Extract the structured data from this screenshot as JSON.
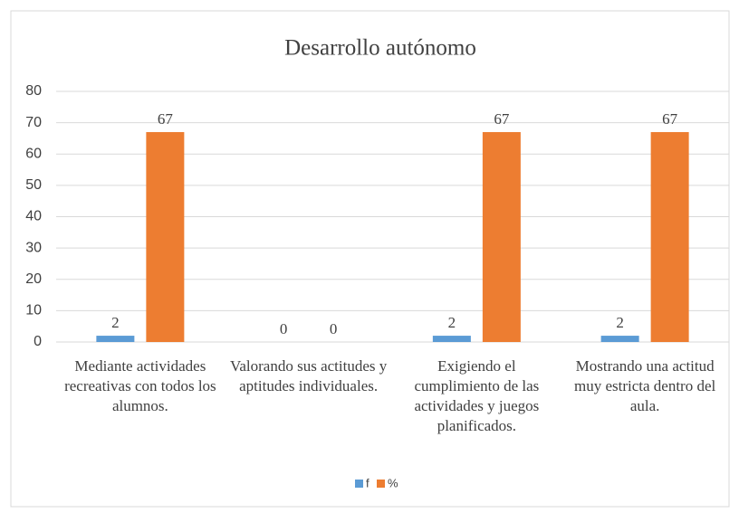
{
  "chart_data": {
    "type": "bar",
    "title": "Desarrollo autónomo",
    "categories": [
      "Mediante actividades recreativas con todos los alumnos.",
      "Valorando sus actitudes y aptitudes individuales.",
      "Exigiendo el cumplimiento de las actividades y juegos planificados.",
      "Mostrando una actitud muy estricta dentro del aula."
    ],
    "series": [
      {
        "name": "f",
        "color": "#5b9bd5",
        "values": [
          2,
          0,
          2,
          2
        ]
      },
      {
        "name": "%",
        "color": "#ed7d31",
        "values": [
          67,
          0,
          67,
          67
        ]
      }
    ],
    "ylim": [
      0,
      80
    ],
    "yticks": [
      0,
      10,
      20,
      30,
      40,
      50,
      60,
      70,
      80
    ],
    "grid": true,
    "legend": "bottom"
  }
}
